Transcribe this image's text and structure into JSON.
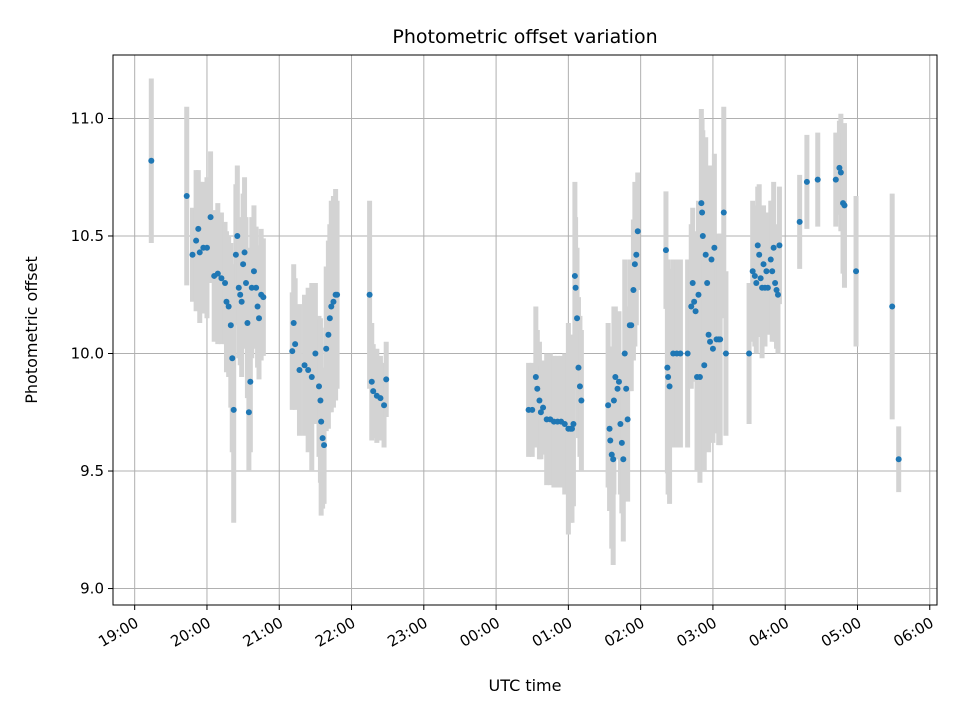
{
  "chart_data": {
    "type": "scatter",
    "title": "Photometric offset variation",
    "xlabel": "UTC time",
    "ylabel": "Photometric offset",
    "x_unit": "hours",
    "xlim": [
      18.7,
      30.1
    ],
    "ylim": [
      8.93,
      11.27
    ],
    "y_ticks": [
      9.0,
      9.5,
      10.0,
      10.5,
      11.0
    ],
    "x_ticks": [
      {
        "value": 19,
        "label": "19:00"
      },
      {
        "value": 20,
        "label": "20:00"
      },
      {
        "value": 21,
        "label": "21:00"
      },
      {
        "value": 22,
        "label": "22:00"
      },
      {
        "value": 23,
        "label": "23:00"
      },
      {
        "value": 24,
        "label": "00:00"
      },
      {
        "value": 25,
        "label": "01:00"
      },
      {
        "value": 26,
        "label": "02:00"
      },
      {
        "value": 27,
        "label": "03:00"
      },
      {
        "value": 28,
        "label": "04:00"
      },
      {
        "value": 29,
        "label": "05:00"
      },
      {
        "value": 30,
        "label": "06:00"
      }
    ],
    "grid": true,
    "colors": {
      "marker": "#1f77b4",
      "errorbar": "#d3d3d3",
      "grid": "#b0b0b0"
    },
    "points": [
      [
        19.23,
        10.82,
        0.35
      ],
      [
        19.72,
        10.67,
        0.38
      ],
      [
        19.8,
        10.42,
        0.2
      ],
      [
        19.85,
        10.48,
        0.3
      ],
      [
        19.88,
        10.53,
        0.25
      ],
      [
        19.9,
        10.43,
        0.3
      ],
      [
        19.95,
        10.45,
        0.28
      ],
      [
        20.0,
        10.45,
        0.3
      ],
      [
        20.05,
        10.58,
        0.28
      ],
      [
        20.1,
        10.33,
        0.28
      ],
      [
        20.15,
        10.34,
        0.3
      ],
      [
        20.2,
        10.32,
        0.28
      ],
      [
        20.25,
        10.3,
        0.26
      ],
      [
        20.27,
        10.22,
        0.3
      ],
      [
        20.3,
        10.2,
        0.3
      ],
      [
        20.33,
        10.12,
        0.35
      ],
      [
        20.35,
        9.98,
        0.4
      ],
      [
        20.37,
        9.76,
        0.48
      ],
      [
        20.4,
        10.42,
        0.3
      ],
      [
        20.42,
        10.5,
        0.3
      ],
      [
        20.44,
        10.28,
        0.3
      ],
      [
        20.46,
        10.25,
        0.3
      ],
      [
        20.48,
        10.22,
        0.32
      ],
      [
        20.5,
        10.38,
        0.3
      ],
      [
        20.52,
        10.43,
        0.32
      ],
      [
        20.54,
        10.3,
        0.28
      ],
      [
        20.56,
        10.13,
        0.32
      ],
      [
        20.58,
        9.75,
        0.25
      ],
      [
        20.6,
        9.88,
        0.3
      ],
      [
        20.62,
        10.28,
        0.3
      ],
      [
        20.65,
        10.35,
        0.28
      ],
      [
        20.68,
        10.28,
        0.26
      ],
      [
        20.7,
        10.2,
        0.26
      ],
      [
        20.72,
        10.15,
        0.26
      ],
      [
        20.75,
        10.25,
        0.28
      ],
      [
        20.78,
        10.24,
        0.25
      ],
      [
        21.18,
        10.01,
        0.25
      ],
      [
        21.2,
        10.13,
        0.25
      ],
      [
        21.22,
        10.04,
        0.28
      ],
      [
        21.28,
        9.93,
        0.28
      ],
      [
        21.35,
        9.95,
        0.3
      ],
      [
        21.4,
        9.93,
        0.35
      ],
      [
        21.45,
        9.9,
        0.4
      ],
      [
        21.5,
        10.0,
        0.3
      ],
      [
        21.55,
        9.86,
        0.3
      ],
      [
        21.57,
        9.8,
        0.35
      ],
      [
        21.58,
        9.71,
        0.4
      ],
      [
        21.6,
        9.64,
        0.3
      ],
      [
        21.62,
        9.61,
        0.25
      ],
      [
        21.65,
        10.02,
        0.35
      ],
      [
        21.68,
        10.08,
        0.4
      ],
      [
        21.7,
        10.15,
        0.4
      ],
      [
        21.72,
        10.2,
        0.45
      ],
      [
        21.75,
        10.22,
        0.45
      ],
      [
        21.78,
        10.25,
        0.45
      ],
      [
        21.8,
        10.25,
        0.4
      ],
      [
        22.25,
        10.25,
        0.4
      ],
      [
        22.28,
        9.88,
        0.25
      ],
      [
        22.3,
        9.84,
        0.2
      ],
      [
        22.35,
        9.82,
        0.2
      ],
      [
        22.4,
        9.81,
        0.18
      ],
      [
        22.45,
        9.78,
        0.18
      ],
      [
        22.48,
        9.89,
        0.16
      ],
      [
        24.45,
        9.76,
        0.2
      ],
      [
        24.5,
        9.76,
        0.2
      ],
      [
        24.55,
        9.9,
        0.3
      ],
      [
        24.57,
        9.85,
        0.25
      ],
      [
        24.6,
        9.8,
        0.25
      ],
      [
        24.62,
        9.75,
        0.2
      ],
      [
        24.65,
        9.77,
        0.2
      ],
      [
        24.7,
        9.72,
        0.28
      ],
      [
        24.75,
        9.72,
        0.28
      ],
      [
        24.8,
        9.71,
        0.28
      ],
      [
        24.85,
        9.71,
        0.28
      ],
      [
        24.9,
        9.71,
        0.28
      ],
      [
        24.95,
        9.7,
        0.3
      ],
      [
        25.0,
        9.68,
        0.45
      ],
      [
        25.03,
        9.68,
        0.4
      ],
      [
        25.05,
        9.68,
        0.4
      ],
      [
        25.07,
        9.7,
        0.35
      ],
      [
        25.09,
        10.33,
        0.4
      ],
      [
        25.1,
        10.28,
        0.3
      ],
      [
        25.12,
        10.15,
        0.3
      ],
      [
        25.14,
        9.94,
        0.3
      ],
      [
        25.16,
        9.86,
        0.3
      ],
      [
        25.18,
        9.8,
        0.3
      ],
      [
        25.55,
        9.78,
        0.35
      ],
      [
        25.57,
        9.68,
        0.35
      ],
      [
        25.58,
        9.63,
        0.3
      ],
      [
        25.6,
        9.57,
        0.4
      ],
      [
        25.62,
        9.55,
        0.45
      ],
      [
        25.63,
        9.8,
        0.4
      ],
      [
        25.65,
        9.9,
        0.3
      ],
      [
        25.68,
        9.85,
        0.3
      ],
      [
        25.7,
        9.88,
        0.3
      ],
      [
        25.72,
        9.7,
        0.3
      ],
      [
        25.74,
        9.62,
        0.3
      ],
      [
        25.76,
        9.55,
        0.35
      ],
      [
        25.78,
        10.0,
        0.4
      ],
      [
        25.8,
        9.85,
        0.35
      ],
      [
        25.82,
        9.72,
        0.35
      ],
      [
        25.85,
        10.12,
        0.28
      ],
      [
        25.87,
        10.12,
        0.28
      ],
      [
        25.9,
        10.27,
        0.3
      ],
      [
        25.92,
        10.38,
        0.35
      ],
      [
        25.94,
        10.42,
        0.3
      ],
      [
        25.96,
        10.52,
        0.25
      ],
      [
        26.35,
        10.44,
        0.25
      ],
      [
        26.37,
        9.94,
        0.45
      ],
      [
        26.38,
        9.9,
        0.5
      ],
      [
        26.4,
        9.86,
        0.5
      ],
      [
        26.45,
        10.0,
        0.4
      ],
      [
        26.5,
        10.0,
        0.4
      ],
      [
        26.55,
        10.0,
        0.4
      ],
      [
        26.65,
        10.0,
        0.4
      ],
      [
        26.7,
        10.2,
        0.35
      ],
      [
        26.72,
        10.3,
        0.32
      ],
      [
        26.74,
        10.22,
        0.3
      ],
      [
        26.76,
        10.18,
        0.3
      ],
      [
        26.78,
        9.9,
        0.4
      ],
      [
        26.8,
        10.25,
        0.4
      ],
      [
        26.82,
        9.9,
        0.45
      ],
      [
        26.84,
        10.64,
        0.4
      ],
      [
        26.85,
        10.6,
        0.4
      ],
      [
        26.86,
        10.5,
        0.45
      ],
      [
        26.88,
        9.95,
        0.45
      ],
      [
        26.9,
        10.42,
        0.5
      ],
      [
        26.92,
        10.3,
        0.5
      ],
      [
        26.94,
        10.08,
        0.5
      ],
      [
        26.96,
        10.05,
        0.4
      ],
      [
        26.98,
        10.4,
        0.4
      ],
      [
        27.0,
        10.02,
        0.4
      ],
      [
        27.02,
        10.45,
        0.4
      ],
      [
        27.05,
        10.06,
        0.4
      ],
      [
        27.08,
        10.06,
        0.45
      ],
      [
        27.1,
        10.06,
        0.45
      ],
      [
        27.15,
        10.6,
        0.45
      ],
      [
        27.18,
        10.0,
        0.35
      ],
      [
        27.5,
        10.0,
        0.3
      ],
      [
        27.55,
        10.35,
        0.3
      ],
      [
        27.58,
        10.33,
        0.3
      ],
      [
        27.6,
        10.3,
        0.3
      ],
      [
        27.62,
        10.46,
        0.25
      ],
      [
        27.64,
        10.42,
        0.3
      ],
      [
        27.66,
        10.32,
        0.25
      ],
      [
        27.68,
        10.28,
        0.3
      ],
      [
        27.7,
        10.38,
        0.25
      ],
      [
        27.72,
        10.28,
        0.25
      ],
      [
        27.74,
        10.35,
        0.25
      ],
      [
        27.76,
        10.28,
        0.2
      ],
      [
        27.8,
        10.4,
        0.25
      ],
      [
        27.82,
        10.35,
        0.3
      ],
      [
        27.84,
        10.45,
        0.28
      ],
      [
        27.86,
        10.3,
        0.25
      ],
      [
        27.88,
        10.27,
        0.25
      ],
      [
        27.9,
        10.25,
        0.25
      ],
      [
        27.92,
        10.46,
        0.25
      ],
      [
        28.2,
        10.56,
        0.2
      ],
      [
        28.3,
        10.73,
        0.2
      ],
      [
        28.45,
        10.74,
        0.2
      ],
      [
        28.7,
        10.74,
        0.2
      ],
      [
        28.75,
        10.79,
        0.2
      ],
      [
        28.77,
        10.77,
        0.25
      ],
      [
        28.8,
        10.64,
        0.3
      ],
      [
        28.82,
        10.63,
        0.35
      ],
      [
        28.98,
        10.35,
        0.32
      ],
      [
        29.48,
        10.2,
        0.48
      ],
      [
        29.57,
        9.55,
        0.14
      ]
    ]
  }
}
